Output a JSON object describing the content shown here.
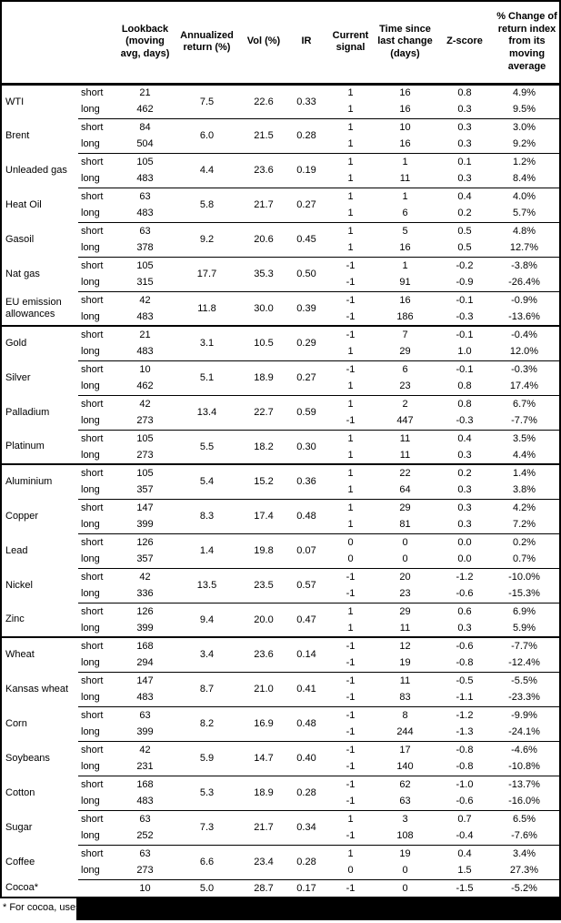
{
  "table": {
    "col_headers": [
      "Lookback (moving avg, days)",
      "Annualized return (%)",
      "Vol (%)",
      "IR",
      "Current signal",
      "Time since last change (days)",
      "Z-score",
      "% Change of return index from its moving average"
    ],
    "sections": [
      {
        "name": "energy",
        "groups": [
          {
            "name": "WTI",
            "annualized_return": "7.5",
            "vol": "22.6",
            "ir": "0.33",
            "rows": [
              {
                "pos": "short",
                "lookback": "21",
                "signal": "1",
                "time_since": "16",
                "z_score": "0.8",
                "pct_change": "4.9%"
              },
              {
                "pos": "long",
                "lookback": "462",
                "signal": "1",
                "time_since": "16",
                "z_score": "0.3",
                "pct_change": "9.5%"
              }
            ]
          },
          {
            "name": "Brent",
            "annualized_return": "6.0",
            "vol": "21.5",
            "ir": "0.28",
            "rows": [
              {
                "pos": "short",
                "lookback": "84",
                "signal": "1",
                "time_since": "10",
                "z_score": "0.3",
                "pct_change": "3.0%"
              },
              {
                "pos": "long",
                "lookback": "504",
                "signal": "1",
                "time_since": "16",
                "z_score": "0.3",
                "pct_change": "9.2%"
              }
            ]
          },
          {
            "name": "Unleaded gas",
            "annualized_return": "4.4",
            "vol": "23.6",
            "ir": "0.19",
            "rows": [
              {
                "pos": "short",
                "lookback": "105",
                "signal": "1",
                "time_since": "1",
                "z_score": "0.1",
                "pct_change": "1.2%"
              },
              {
                "pos": "long",
                "lookback": "483",
                "signal": "1",
                "time_since": "11",
                "z_score": "0.3",
                "pct_change": "8.4%"
              }
            ]
          },
          {
            "name": "Heat Oil",
            "annualized_return": "5.8",
            "vol": "21.7",
            "ir": "0.27",
            "rows": [
              {
                "pos": "short",
                "lookback": "63",
                "signal": "1",
                "time_since": "1",
                "z_score": "0.4",
                "pct_change": "4.0%"
              },
              {
                "pos": "long",
                "lookback": "483",
                "signal": "1",
                "time_since": "6",
                "z_score": "0.2",
                "pct_change": "5.7%"
              }
            ]
          },
          {
            "name": "Gasoil",
            "annualized_return": "9.2",
            "vol": "20.6",
            "ir": "0.45",
            "rows": [
              {
                "pos": "short",
                "lookback": "63",
                "signal": "1",
                "time_since": "5",
                "z_score": "0.5",
                "pct_change": "4.8%"
              },
              {
                "pos": "long",
                "lookback": "378",
                "signal": "1",
                "time_since": "16",
                "z_score": "0.5",
                "pct_change": "12.7%"
              }
            ]
          },
          {
            "name": "Nat gas",
            "annualized_return": "17.7",
            "vol": "35.3",
            "ir": "0.50",
            "rows": [
              {
                "pos": "short",
                "lookback": "105",
                "signal": "-1",
                "time_since": "1",
                "z_score": "-0.2",
                "pct_change": "-3.8%"
              },
              {
                "pos": "long",
                "lookback": "315",
                "signal": "-1",
                "time_since": "91",
                "z_score": "-0.9",
                "pct_change": "-26.4%"
              }
            ]
          },
          {
            "name": "EU emission allowances",
            "annualized_return": "11.8",
            "vol": "30.0",
            "ir": "0.39",
            "rows": [
              {
                "pos": "short",
                "lookback": "42",
                "signal": "-1",
                "time_since": "16",
                "z_score": "-0.1",
                "pct_change": "-0.9%"
              },
              {
                "pos": "long",
                "lookback": "483",
                "signal": "-1",
                "time_since": "186",
                "z_score": "-0.3",
                "pct_change": "-13.6%"
              }
            ]
          }
        ]
      },
      {
        "name": "precious-metals",
        "groups": [
          {
            "name": "Gold",
            "annualized_return": "3.1",
            "vol": "10.5",
            "ir": "0.29",
            "rows": [
              {
                "pos": "short",
                "lookback": "21",
                "signal": "-1",
                "time_since": "7",
                "z_score": "-0.1",
                "pct_change": "-0.4%"
              },
              {
                "pos": "long",
                "lookback": "483",
                "signal": "1",
                "time_since": "29",
                "z_score": "1.0",
                "pct_change": "12.0%"
              }
            ]
          },
          {
            "name": "Silver",
            "annualized_return": "5.1",
            "vol": "18.9",
            "ir": "0.27",
            "rows": [
              {
                "pos": "short",
                "lookback": "10",
                "signal": "-1",
                "time_since": "6",
                "z_score": "-0.1",
                "pct_change": "-0.3%"
              },
              {
                "pos": "long",
                "lookback": "462",
                "signal": "1",
                "time_since": "23",
                "z_score": "0.8",
                "pct_change": "17.4%"
              }
            ]
          },
          {
            "name": "Palladium",
            "annualized_return": "13.4",
            "vol": "22.7",
            "ir": "0.59",
            "rows": [
              {
                "pos": "short",
                "lookback": "42",
                "signal": "1",
                "time_since": "2",
                "z_score": "0.8",
                "pct_change": "6.7%"
              },
              {
                "pos": "long",
                "lookback": "273",
                "signal": "-1",
                "time_since": "447",
                "z_score": "-0.3",
                "pct_change": "-7.7%"
              }
            ]
          },
          {
            "name": "Platinum",
            "annualized_return": "5.5",
            "vol": "18.2",
            "ir": "0.30",
            "rows": [
              {
                "pos": "short",
                "lookback": "105",
                "signal": "1",
                "time_since": "11",
                "z_score": "0.4",
                "pct_change": "3.5%"
              },
              {
                "pos": "long",
                "lookback": "273",
                "signal": "1",
                "time_since": "11",
                "z_score": "0.3",
                "pct_change": "4.4%"
              }
            ]
          }
        ]
      },
      {
        "name": "base-metals",
        "groups": [
          {
            "name": "Aluminium",
            "annualized_return": "5.4",
            "vol": "15.2",
            "ir": "0.36",
            "rows": [
              {
                "pos": "short",
                "lookback": "105",
                "signal": "1",
                "time_since": "22",
                "z_score": "0.2",
                "pct_change": "1.4%"
              },
              {
                "pos": "long",
                "lookback": "357",
                "signal": "1",
                "time_since": "64",
                "z_score": "0.3",
                "pct_change": "3.8%"
              }
            ]
          },
          {
            "name": "Copper",
            "annualized_return": "8.3",
            "vol": "17.4",
            "ir": "0.48",
            "rows": [
              {
                "pos": "short",
                "lookback": "147",
                "signal": "1",
                "time_since": "29",
                "z_score": "0.3",
                "pct_change": "4.2%"
              },
              {
                "pos": "long",
                "lookback": "399",
                "signal": "1",
                "time_since": "81",
                "z_score": "0.3",
                "pct_change": "7.2%"
              }
            ]
          },
          {
            "name": "Lead",
            "annualized_return": "1.4",
            "vol": "19.8",
            "ir": "0.07",
            "rows": [
              {
                "pos": "short",
                "lookback": "126",
                "signal": "0",
                "time_since": "0",
                "z_score": "0.0",
                "pct_change": "0.2%"
              },
              {
                "pos": "long",
                "lookback": "357",
                "signal": "0",
                "time_since": "0",
                "z_score": "0.0",
                "pct_change": "0.7%"
              }
            ]
          },
          {
            "name": "Nickel",
            "annualized_return": "13.5",
            "vol": "23.5",
            "ir": "0.57",
            "rows": [
              {
                "pos": "short",
                "lookback": "42",
                "signal": "-1",
                "time_since": "20",
                "z_score": "-1.2",
                "pct_change": "-10.0%"
              },
              {
                "pos": "long",
                "lookback": "336",
                "signal": "-1",
                "time_since": "23",
                "z_score": "-0.6",
                "pct_change": "-15.3%"
              }
            ]
          },
          {
            "name": "Zinc",
            "annualized_return": "9.4",
            "vol": "20.0",
            "ir": "0.47",
            "rows": [
              {
                "pos": "short",
                "lookback": "126",
                "signal": "1",
                "time_since": "29",
                "z_score": "0.6",
                "pct_change": "6.9%"
              },
              {
                "pos": "long",
                "lookback": "399",
                "signal": "1",
                "time_since": "11",
                "z_score": "0.3",
                "pct_change": "5.9%"
              }
            ]
          }
        ]
      },
      {
        "name": "agriculture",
        "groups": [
          {
            "name": "Wheat",
            "annualized_return": "3.4",
            "vol": "23.6",
            "ir": "0.14",
            "rows": [
              {
                "pos": "short",
                "lookback": "168",
                "signal": "-1",
                "time_since": "12",
                "z_score": "-0.6",
                "pct_change": "-7.7%"
              },
              {
                "pos": "long",
                "lookback": "294",
                "signal": "-1",
                "time_since": "19",
                "z_score": "-0.8",
                "pct_change": "-12.4%"
              }
            ]
          },
          {
            "name": "Kansas wheat",
            "annualized_return": "8.7",
            "vol": "21.0",
            "ir": "0.41",
            "rows": [
              {
                "pos": "short",
                "lookback": "147",
                "signal": "-1",
                "time_since": "11",
                "z_score": "-0.5",
                "pct_change": "-5.5%"
              },
              {
                "pos": "long",
                "lookback": "483",
                "signal": "-1",
                "time_since": "83",
                "z_score": "-1.1",
                "pct_change": "-23.3%"
              }
            ]
          },
          {
            "name": "Corn",
            "annualized_return": "8.2",
            "vol": "16.9",
            "ir": "0.48",
            "rows": [
              {
                "pos": "short",
                "lookback": "63",
                "signal": "-1",
                "time_since": "8",
                "z_score": "-1.2",
                "pct_change": "-9.9%"
              },
              {
                "pos": "long",
                "lookback": "399",
                "signal": "-1",
                "time_since": "244",
                "z_score": "-1.3",
                "pct_change": "-24.1%"
              }
            ]
          },
          {
            "name": "Soybeans",
            "annualized_return": "5.9",
            "vol": "14.7",
            "ir": "0.40",
            "rows": [
              {
                "pos": "short",
                "lookback": "42",
                "signal": "-1",
                "time_since": "17",
                "z_score": "-0.8",
                "pct_change": "-4.6%"
              },
              {
                "pos": "long",
                "lookback": "231",
                "signal": "-1",
                "time_since": "140",
                "z_score": "-0.8",
                "pct_change": "-10.8%"
              }
            ]
          },
          {
            "name": "Cotton",
            "annualized_return": "5.3",
            "vol": "18.9",
            "ir": "0.28",
            "rows": [
              {
                "pos": "short",
                "lookback": "168",
                "signal": "-1",
                "time_since": "62",
                "z_score": "-1.0",
                "pct_change": "-13.7%"
              },
              {
                "pos": "long",
                "lookback": "483",
                "signal": "-1",
                "time_since": "63",
                "z_score": "-0.6",
                "pct_change": "-16.0%"
              }
            ]
          },
          {
            "name": "Sugar",
            "annualized_return": "7.3",
            "vol": "21.7",
            "ir": "0.34",
            "rows": [
              {
                "pos": "short",
                "lookback": "63",
                "signal": "1",
                "time_since": "3",
                "z_score": "0.7",
                "pct_change": "6.5%"
              },
              {
                "pos": "long",
                "lookback": "252",
                "signal": "-1",
                "time_since": "108",
                "z_score": "-0.4",
                "pct_change": "-7.6%"
              }
            ]
          },
          {
            "name": "Coffee",
            "annualized_return": "6.6",
            "vol": "23.4",
            "ir": "0.28",
            "rows": [
              {
                "pos": "short",
                "lookback": "63",
                "signal": "1",
                "time_since": "19",
                "z_score": "0.4",
                "pct_change": "3.4%"
              },
              {
                "pos": "long",
                "lookback": "273",
                "signal": "0",
                "time_since": "0",
                "z_score": "1.5",
                "pct_change": "27.3%"
              }
            ]
          },
          {
            "name": "Cocoa*",
            "annualized_return": "5.0",
            "vol": "28.7",
            "ir": "0.17",
            "rows": [
              {
                "pos": "",
                "lookback": "10",
                "signal": "-1",
                "time_since": "0",
                "z_score": "-1.5",
                "pct_change": "-5.2%"
              }
            ]
          }
        ]
      }
    ]
  },
  "footnote": {
    "visible_text": "* For cocoa, uses c",
    "redacted": true,
    "redaction_color": "#000000"
  }
}
